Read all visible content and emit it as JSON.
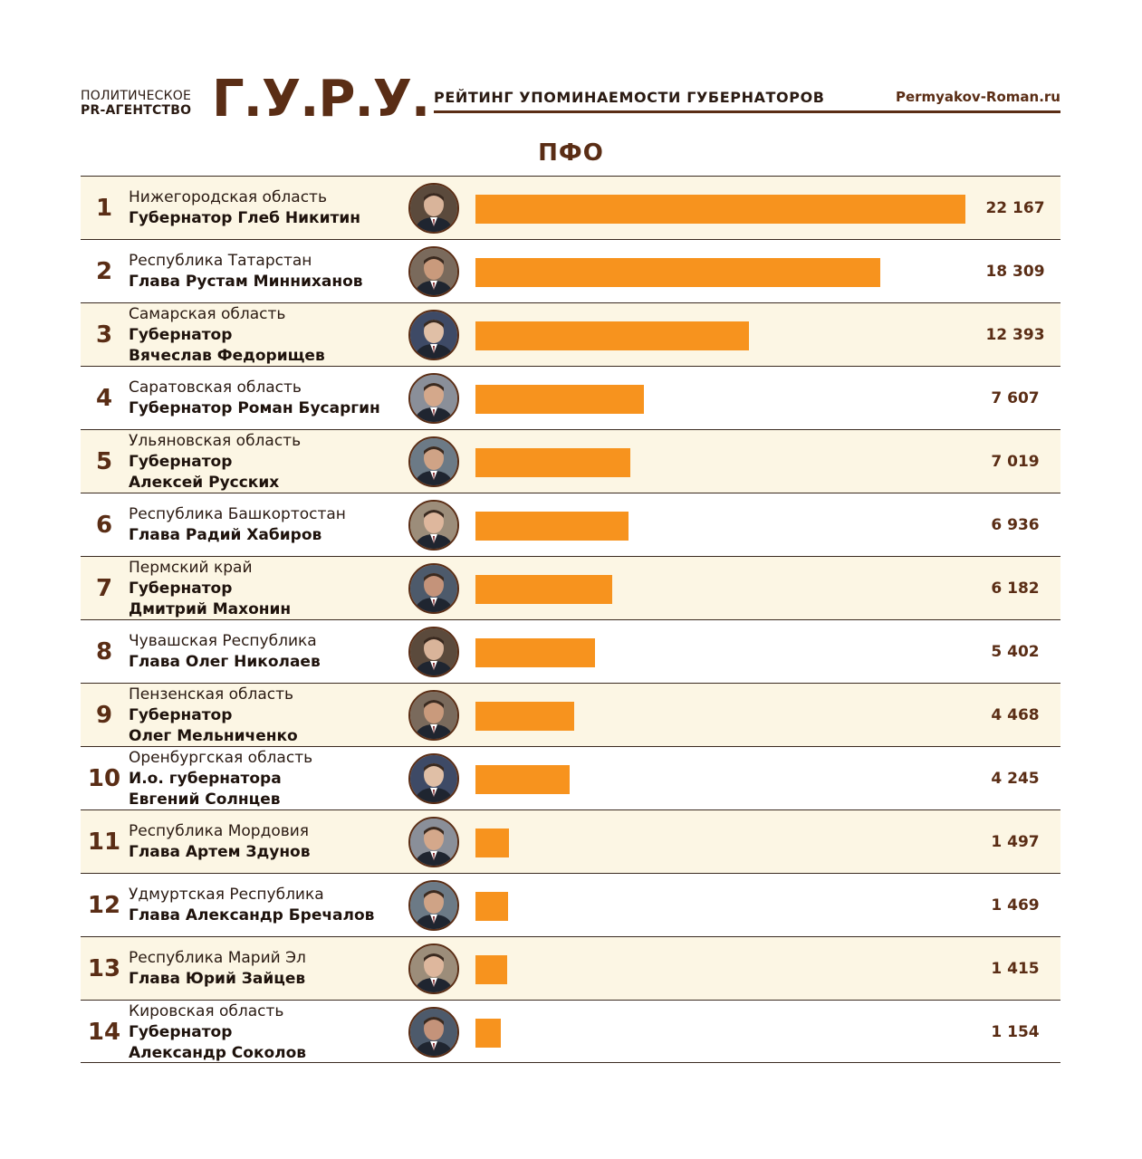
{
  "header": {
    "agency_line1": "ПОЛИТИЧЕСКОЕ",
    "agency_line2": "PR-АГЕНТСТВО",
    "brand": "Г.У.Р.У.",
    "rating_title": "РЕЙТИНГ УПОМИНАЕМОСТИ ГУБЕРНАТОРОВ",
    "site": "Permyakov-Roman.ru"
  },
  "section": "ПФО",
  "colors": {
    "bar": "#f7931e",
    "brand": "#5a2d15",
    "row_alt": "#fcf6e4"
  },
  "chart_data": {
    "type": "bar",
    "orientation": "horizontal",
    "title": "ПФО",
    "categories": [
      "Нижегородская область",
      "Республика Татарстан",
      "Самарская область",
      "Саратовская область",
      "Ульяновская область",
      "Республика Башкортостан",
      "Пермский край",
      "Чувашская Республика",
      "Пензенская область",
      "Оренбургская область",
      "Республика Мордовия",
      "Удмуртская Республика",
      "Республика Марий Эл",
      "Кировская область"
    ],
    "values": [
      22167,
      18309,
      12393,
      7607,
      7019,
      6936,
      6182,
      5402,
      4468,
      4245,
      1497,
      1469,
      1415,
      1154
    ],
    "max": 22167
  },
  "rows": [
    {
      "rank": "1",
      "region": "Нижегородская область",
      "gov_lines": [
        "Губернатор Глеб Никитин"
      ],
      "value_label": "22 167",
      "value": 22167
    },
    {
      "rank": "2",
      "region": "Республика Татарстан",
      "gov_lines": [
        "Глава Рустам Минниханов"
      ],
      "value_label": "18 309",
      "value": 18309
    },
    {
      "rank": "3",
      "region": "Самарская область",
      "gov_lines": [
        "Губернатор",
        "Вячеслав Федорищев"
      ],
      "value_label": "12 393",
      "value": 12393
    },
    {
      "rank": "4",
      "region": "Саратовская область",
      "gov_lines": [
        "Губернатор Роман Бусаргин"
      ],
      "value_label": "7 607",
      "value": 7607
    },
    {
      "rank": "5",
      "region": "Ульяновская область",
      "gov_lines": [
        "Губернатор",
        "Алексей Русских"
      ],
      "value_label": "7 019",
      "value": 7019
    },
    {
      "rank": "6",
      "region": "Республика Башкортостан",
      "gov_lines": [
        "Глава Радий Хабиров"
      ],
      "value_label": "6 936",
      "value": 6936
    },
    {
      "rank": "7",
      "region": "Пермский край",
      "gov_lines": [
        "Губернатор",
        "Дмитрий Махонин"
      ],
      "value_label": "6 182",
      "value": 6182
    },
    {
      "rank": "8",
      "region": "Чувашская Республика",
      "gov_lines": [
        "Глава Олег Николаев"
      ],
      "value_label": "5 402",
      "value": 5402
    },
    {
      "rank": "9",
      "region": "Пензенская область",
      "gov_lines": [
        "Губернатор",
        "Олег Мельниченко"
      ],
      "value_label": "4 468",
      "value": 4468
    },
    {
      "rank": "10",
      "region": "Оренбургская область",
      "gov_lines": [
        "И.о. губернатора",
        "Евгений Солнцев"
      ],
      "value_label": "4 245",
      "value": 4245
    },
    {
      "rank": "11",
      "region": "Республика Мордовия",
      "gov_lines": [
        "Глава Артем Здунов"
      ],
      "value_label": "1 497",
      "value": 1497
    },
    {
      "rank": "12",
      "region": "Удмуртская Республика",
      "gov_lines": [
        "Глава Александр Бречалов"
      ],
      "value_label": "1 469",
      "value": 1469
    },
    {
      "rank": "13",
      "region": "Республика Марий Эл",
      "gov_lines": [
        "Глава Юрий Зайцев"
      ],
      "value_label": "1 415",
      "value": 1415
    },
    {
      "rank": "14",
      "region": "Кировская область",
      "gov_lines": [
        "Губернатор",
        "Александр Соколов"
      ],
      "value_label": "1 154",
      "value": 1154
    }
  ]
}
